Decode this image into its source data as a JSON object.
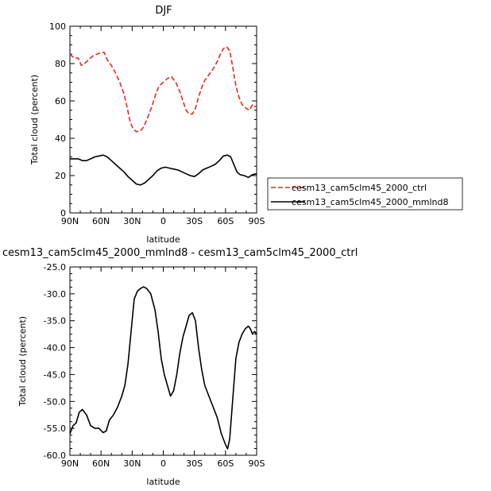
{
  "chart_data": [
    {
      "type": "line",
      "title": "DJF",
      "xlabel": "latitude",
      "ylabel": "Total cloud (percent)",
      "xlim": [
        -90,
        90
      ],
      "ylim": [
        0,
        100
      ],
      "xticks": [
        -90,
        -60,
        -30,
        0,
        30,
        60,
        90
      ],
      "xtick_labels": [
        "90N",
        "60N",
        "30N",
        "0",
        "30S",
        "60S",
        "90S"
      ],
      "yticks": [
        0,
        20,
        40,
        60,
        80,
        100
      ],
      "ytick_labels": [
        "0",
        "20",
        "40",
        "60",
        "80",
        "100"
      ],
      "legend_position": "right",
      "series": [
        {
          "name": "cesm13_cam5clm45_2000_ctrl",
          "color": "#e8281e",
          "dash": true,
          "points": [
            [
              -90,
              85
            ],
            [
              -86,
              83
            ],
            [
              -82,
              83
            ],
            [
              -79,
              79
            ],
            [
              -76,
              80
            ],
            [
              -72,
              82
            ],
            [
              -68,
              84
            ],
            [
              -64,
              85
            ],
            [
              -60,
              86
            ],
            [
              -57,
              86
            ],
            [
              -54,
              82
            ],
            [
              -50,
              79
            ],
            [
              -46,
              75
            ],
            [
              -42,
              70
            ],
            [
              -38,
              64
            ],
            [
              -35,
              57
            ],
            [
              -32,
              49
            ],
            [
              -29,
              45
            ],
            [
              -26,
              43.5
            ],
            [
              -22,
              44
            ],
            [
              -19,
              46
            ],
            [
              -15,
              51
            ],
            [
              -11,
              57
            ],
            [
              -7,
              64
            ],
            [
              -4,
              68
            ],
            [
              0,
              70
            ],
            [
              4,
              72
            ],
            [
              8,
              73
            ],
            [
              12,
              70
            ],
            [
              16,
              65
            ],
            [
              19,
              60
            ],
            [
              22,
              55
            ],
            [
              25,
              53
            ],
            [
              28,
              53
            ],
            [
              31,
              56
            ],
            [
              34,
              62
            ],
            [
              37,
              67
            ],
            [
              40,
              71
            ],
            [
              44,
              74
            ],
            [
              48,
              77
            ],
            [
              52,
              81
            ],
            [
              55,
              85
            ],
            [
              58,
              88
            ],
            [
              61,
              89
            ],
            [
              64,
              87
            ],
            [
              67,
              78
            ],
            [
              70,
              68
            ],
            [
              73,
              62
            ],
            [
              76,
              58
            ],
            [
              80,
              56
            ],
            [
              83,
              55
            ],
            [
              86,
              58
            ],
            [
              88,
              57
            ],
            [
              90,
              57
            ]
          ]
        },
        {
          "name": "cesm13_cam5clm45_2000_mmlnd8",
          "color": "#000000",
          "dash": false,
          "points": [
            [
              -90,
              29
            ],
            [
              -86,
              29
            ],
            [
              -82,
              29
            ],
            [
              -78,
              28
            ],
            [
              -74,
              28
            ],
            [
              -70,
              29
            ],
            [
              -66,
              30
            ],
            [
              -62,
              30.5
            ],
            [
              -58,
              31
            ],
            [
              -54,
              30
            ],
            [
              -50,
              28
            ],
            [
              -46,
              26
            ],
            [
              -42,
              24
            ],
            [
              -38,
              22
            ],
            [
              -34,
              19.5
            ],
            [
              -30,
              17.5
            ],
            [
              -26,
              15.5
            ],
            [
              -22,
              15
            ],
            [
              -18,
              16
            ],
            [
              -14,
              18
            ],
            [
              -10,
              20
            ],
            [
              -6,
              22.5
            ],
            [
              -2,
              24
            ],
            [
              2,
              24.5
            ],
            [
              6,
              24
            ],
            [
              10,
              23.5
            ],
            [
              14,
              23
            ],
            [
              18,
              22
            ],
            [
              22,
              21
            ],
            [
              26,
              20
            ],
            [
              30,
              19.5
            ],
            [
              34,
              21
            ],
            [
              38,
              23
            ],
            [
              42,
              24
            ],
            [
              46,
              25
            ],
            [
              50,
              26
            ],
            [
              54,
              28
            ],
            [
              58,
              30.5
            ],
            [
              62,
              31
            ],
            [
              65,
              30
            ],
            [
              68,
              26
            ],
            [
              71,
              22
            ],
            [
              74,
              20.5
            ],
            [
              78,
              20
            ],
            [
              82,
              19
            ],
            [
              86,
              20.5
            ],
            [
              90,
              21
            ]
          ]
        }
      ]
    },
    {
      "type": "line",
      "title": "cesm13_cam5clm45_2000_mmlnd8 - cesm13_cam5clm45_2000_ctrl",
      "xlabel": "latitude",
      "ylabel": "Total cloud (percent)",
      "xlim": [
        -90,
        90
      ],
      "ylim": [
        -60,
        -25
      ],
      "xticks": [
        -90,
        -60,
        -30,
        0,
        30,
        60,
        90
      ],
      "xtick_labels": [
        "90N",
        "60N",
        "30N",
        "0",
        "30S",
        "60S",
        "90S"
      ],
      "yticks": [
        -60,
        -55,
        -50,
        -45,
        -40,
        -35,
        -30,
        -25
      ],
      "ytick_labels": [
        "-60.0",
        "-55.0",
        "-50.0",
        "-45.0",
        "-40.0",
        "-35.0",
        "-30.0",
        "-25.0"
      ],
      "series": [
        {
          "color": "#000000",
          "dash": false,
          "points": [
            [
              -90,
              -56
            ],
            [
              -87,
              -54.5
            ],
            [
              -84,
              -54
            ],
            [
              -81,
              -52
            ],
            [
              -78,
              -51.5
            ],
            [
              -74,
              -52.5
            ],
            [
              -70,
              -54.5
            ],
            [
              -66,
              -55
            ],
            [
              -62,
              -55
            ],
            [
              -58,
              -55.8
            ],
            [
              -55,
              -55.5
            ],
            [
              -52,
              -53.5
            ],
            [
              -48,
              -52.5
            ],
            [
              -44,
              -51
            ],
            [
              -40,
              -49
            ],
            [
              -37,
              -47
            ],
            [
              -34,
              -43
            ],
            [
              -31,
              -37
            ],
            [
              -28,
              -31
            ],
            [
              -25,
              -29.5
            ],
            [
              -22,
              -29
            ],
            [
              -19,
              -28.7
            ],
            [
              -16,
              -29
            ],
            [
              -12,
              -30
            ],
            [
              -8,
              -33
            ],
            [
              -5,
              -37
            ],
            [
              -2,
              -42
            ],
            [
              1,
              -45
            ],
            [
              4,
              -47
            ],
            [
              7,
              -49
            ],
            [
              10,
              -48
            ],
            [
              13,
              -45
            ],
            [
              16,
              -41
            ],
            [
              19,
              -38
            ],
            [
              22,
              -36
            ],
            [
              25,
              -34
            ],
            [
              28,
              -33.5
            ],
            [
              31,
              -35
            ],
            [
              34,
              -40
            ],
            [
              37,
              -44
            ],
            [
              40,
              -47
            ],
            [
              44,
              -49
            ],
            [
              48,
              -51
            ],
            [
              52,
              -53
            ],
            [
              56,
              -56
            ],
            [
              60,
              -58
            ],
            [
              62,
              -58.8
            ],
            [
              64,
              -57
            ],
            [
              66,
              -52
            ],
            [
              68,
              -47
            ],
            [
              70,
              -42
            ],
            [
              73,
              -39
            ],
            [
              76,
              -37.5
            ],
            [
              79,
              -36.5
            ],
            [
              82,
              -36
            ],
            [
              84,
              -36.5
            ],
            [
              86,
              -37.5
            ],
            [
              88,
              -37
            ],
            [
              90,
              -37.5
            ]
          ]
        }
      ]
    }
  ]
}
